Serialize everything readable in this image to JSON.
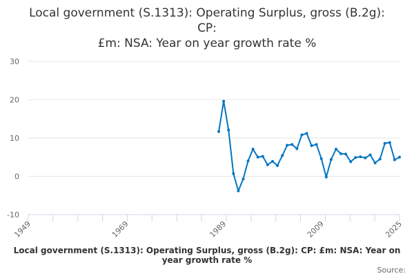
{
  "chart_data": {
    "type": "line",
    "title_lines": [
      "Local government (S.1313): Operating Surplus, gross (B.2g):",
      "CP:",
      "£m: NSA: Year on year growth rate %"
    ],
    "xlabel": "",
    "ylabel": "",
    "xlim": [
      1949,
      2025
    ],
    "ylim": [
      -10,
      30
    ],
    "yticks": [
      30,
      20,
      10,
      0,
      -10
    ],
    "xtick_labels": [
      "1949",
      "1969",
      "1989",
      "2009",
      "2025"
    ],
    "grid": true,
    "color": "#0075c2",
    "series": [
      {
        "name": "Local government (S.1313): Operating Surplus, gross (B.2g): CP: £m: NSA: Year on year growth rate %",
        "x": [
          1988,
          1989,
          1990,
          1991,
          1992,
          1993,
          1994,
          1995,
          1996,
          1997,
          1998,
          1999,
          2000,
          2001,
          2002,
          2003,
          2004,
          2005,
          2006,
          2007,
          2008,
          2009,
          2010,
          2011,
          2012,
          2013,
          2014,
          2015,
          2016,
          2017,
          2018,
          2019,
          2020,
          2021,
          2022,
          2023,
          2024,
          2025
        ],
        "values": [
          11.7,
          19.6,
          12.1,
          0.7,
          -3.8,
          -0.7,
          4.0,
          7.1,
          5.0,
          5.2,
          3.0,
          3.9,
          2.8,
          5.4,
          8.1,
          8.3,
          7.2,
          10.8,
          11.2,
          8.0,
          8.3,
          4.6,
          -0.2,
          4.4,
          7.1,
          5.9,
          5.8,
          3.8,
          4.9,
          5.1,
          4.8,
          5.6,
          3.5,
          4.5,
          8.6,
          8.8,
          4.3,
          5.0
        ]
      }
    ],
    "legend": "bottom",
    "source_label": "Source:"
  }
}
